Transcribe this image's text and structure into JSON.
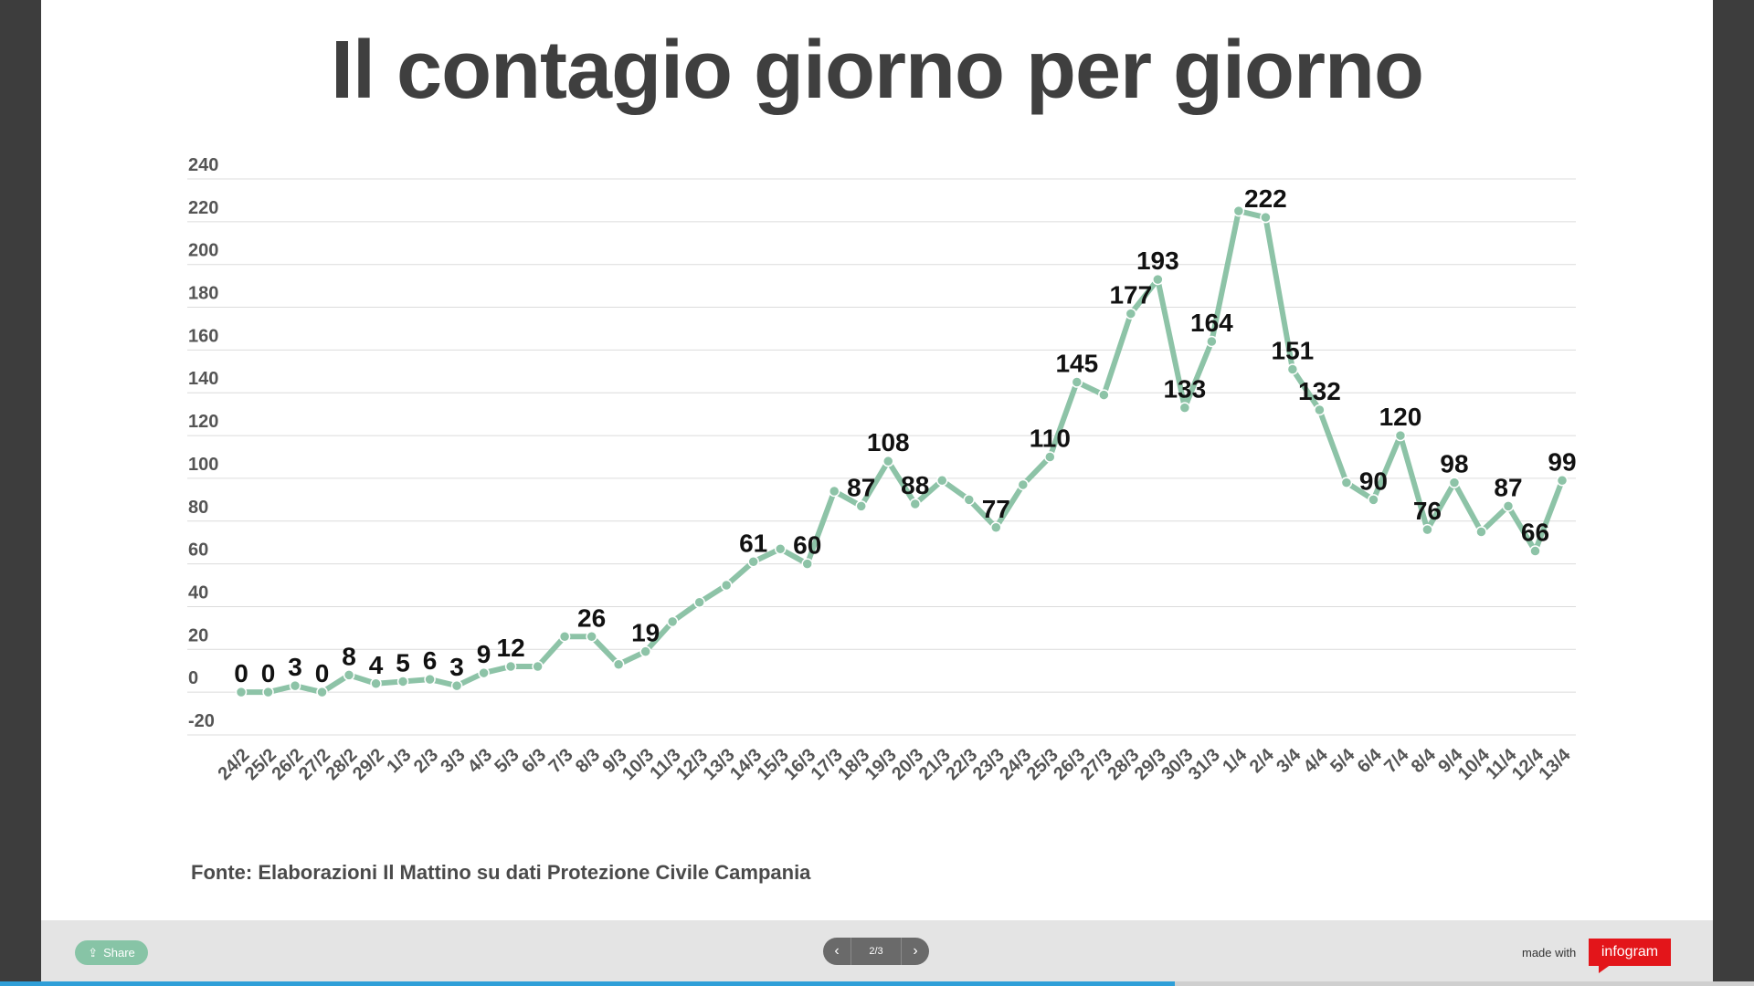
{
  "chart_data": {
    "type": "line",
    "title": "Il contagio giorno per giorno",
    "x": [
      "24/2",
      "25/2",
      "26/2",
      "27/2",
      "28/2",
      "29/2",
      "1/3",
      "2/3",
      "3/3",
      "4/3",
      "5/3",
      "6/3",
      "7/3",
      "8/3",
      "9/3",
      "10/3",
      "11/3",
      "12/3",
      "13/3",
      "14/3",
      "15/3",
      "16/3",
      "17/3",
      "18/3",
      "19/3",
      "20/3",
      "21/3",
      "22/3",
      "23/3",
      "24/3",
      "25/3",
      "26/3",
      "27/3",
      "28/3",
      "29/3",
      "30/3",
      "31/3",
      "1/4",
      "2/4",
      "3/4",
      "4/4",
      "5/4",
      "6/4",
      "7/4",
      "8/4",
      "9/4",
      "10/4",
      "11/4",
      "12/4",
      "13/4"
    ],
    "series": [
      {
        "values": [
          0,
          0,
          3,
          0,
          8,
          4,
          5,
          6,
          3,
          9,
          12,
          12,
          26,
          26,
          13,
          19,
          33,
          42,
          50,
          61,
          67,
          60,
          94,
          87,
          108,
          88,
          99,
          90,
          77,
          97,
          110,
          145,
          139,
          177,
          193,
          133,
          164,
          225,
          222,
          151,
          132,
          98,
          90,
          120,
          76,
          98,
          75,
          87,
          66,
          99
        ],
        "labeled": [
          true,
          true,
          true,
          true,
          true,
          true,
          true,
          true,
          true,
          true,
          true,
          false,
          false,
          true,
          false,
          true,
          false,
          false,
          false,
          true,
          false,
          true,
          false,
          true,
          true,
          true,
          false,
          false,
          true,
          false,
          true,
          true,
          false,
          true,
          true,
          true,
          true,
          false,
          true,
          true,
          true,
          false,
          true,
          true,
          true,
          true,
          false,
          true,
          true,
          true
        ]
      }
    ],
    "ylim": [
      -20,
      240
    ],
    "yticks": [
      -20,
      0,
      20,
      40,
      60,
      80,
      100,
      120,
      140,
      160,
      180,
      200,
      220,
      240
    ],
    "grid": true,
    "line_color": "#8dc3a7",
    "label_color": "#111111"
  },
  "source_text": "Fonte: Elaborazioni Il Mattino su dati Protezione Civile Campania",
  "footer": {
    "share_label": "Share",
    "share_icon": "share-icon",
    "prev_icon": "chevron-left-icon",
    "next_icon": "chevron-right-icon",
    "page_indicator": "2/3",
    "made_with": "made with",
    "brand": "infogram",
    "progress": 0.67,
    "progress_color": "#2f9fd8",
    "brand_color": "#e3151a"
  }
}
